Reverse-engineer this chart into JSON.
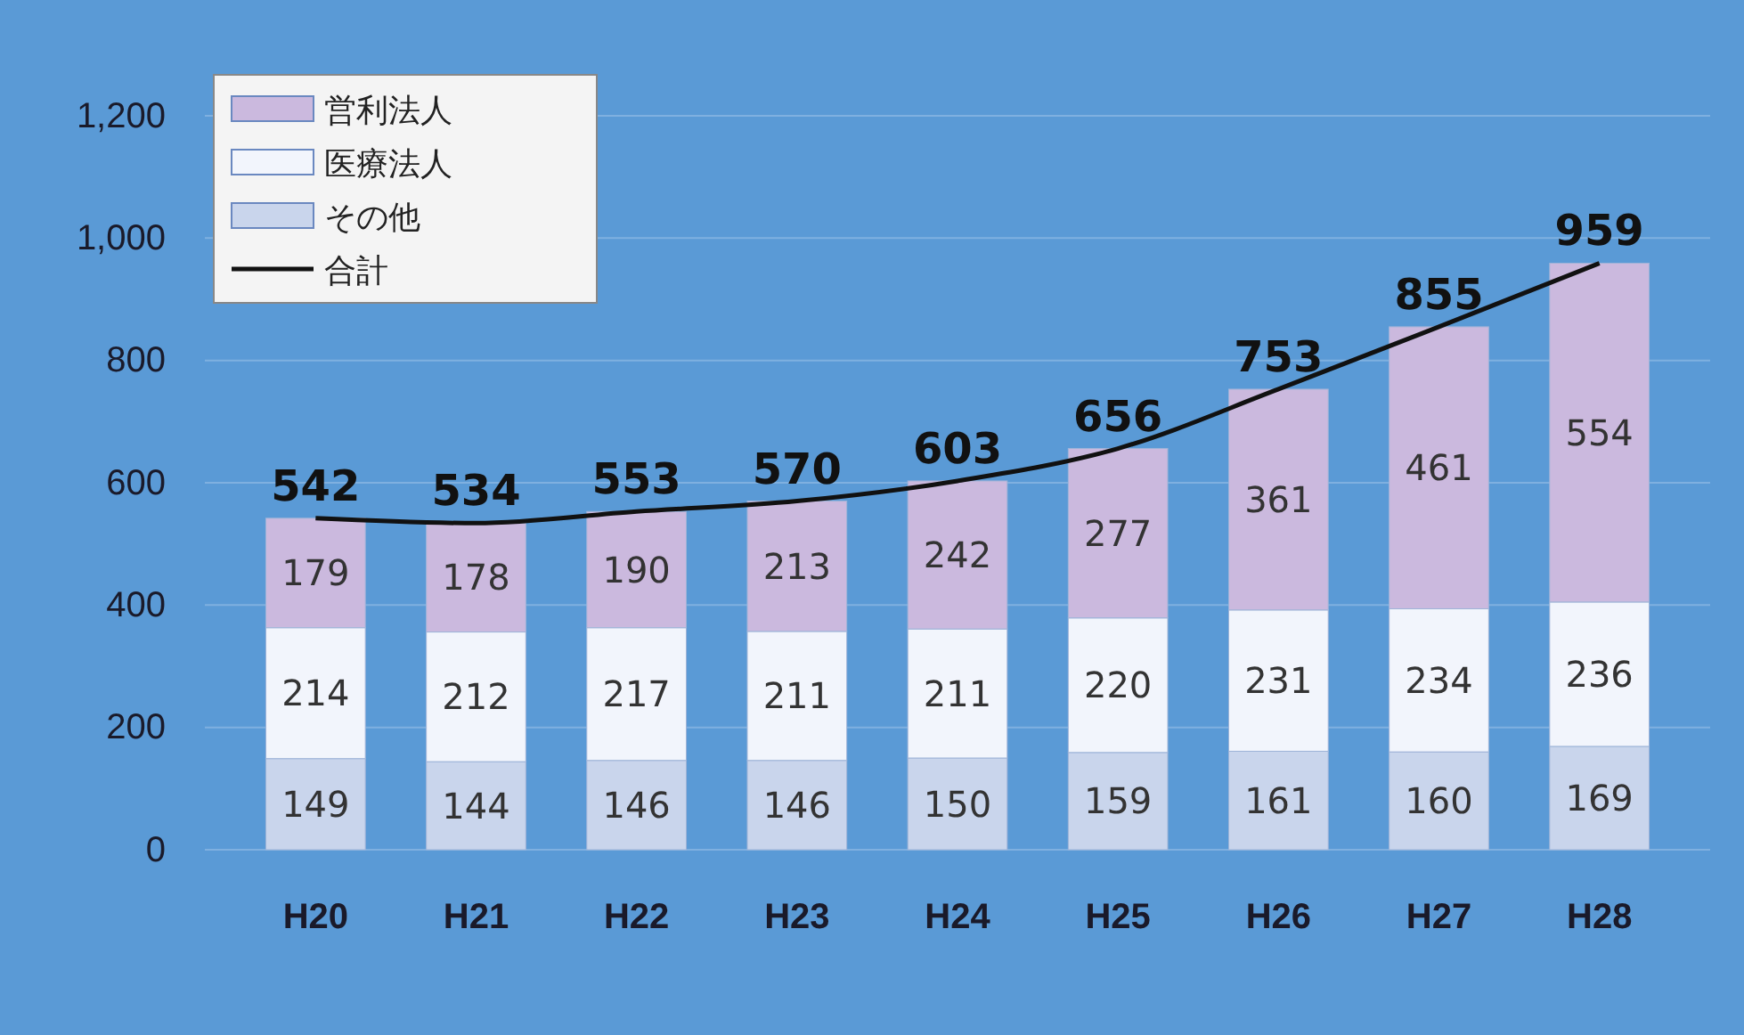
{
  "chart_data": {
    "type": "bar",
    "stacked": true,
    "categories": [
      "H20",
      "H21",
      "H22",
      "H23",
      "H24",
      "H25",
      "H26",
      "H27",
      "H28"
    ],
    "series": [
      {
        "name": "その他",
        "color": "#c9d5ec",
        "values": [
          149,
          144,
          146,
          146,
          150,
          159,
          161,
          160,
          169
        ]
      },
      {
        "name": "医療法人",
        "color": "#f2f5fc",
        "values": [
          214,
          212,
          217,
          211,
          211,
          220,
          231,
          234,
          236
        ]
      },
      {
        "name": "営利法人",
        "color": "#cbb9de",
        "values": [
          179,
          178,
          190,
          213,
          242,
          277,
          361,
          461,
          554
        ]
      },
      {
        "name": "合計",
        "type": "line",
        "color": "#111111",
        "values": [
          542,
          534,
          553,
          570,
          603,
          656,
          753,
          855,
          959
        ]
      }
    ],
    "ylim": [
      0,
      1200
    ],
    "yticks": [
      0,
      200,
      400,
      600,
      800,
      {
        "value": 1000,
        "label": "1,000"
      },
      {
        "value": 1200,
        "label": "1,200"
      }
    ],
    "grid": "y",
    "legend": "top left",
    "data_labels": true
  }
}
